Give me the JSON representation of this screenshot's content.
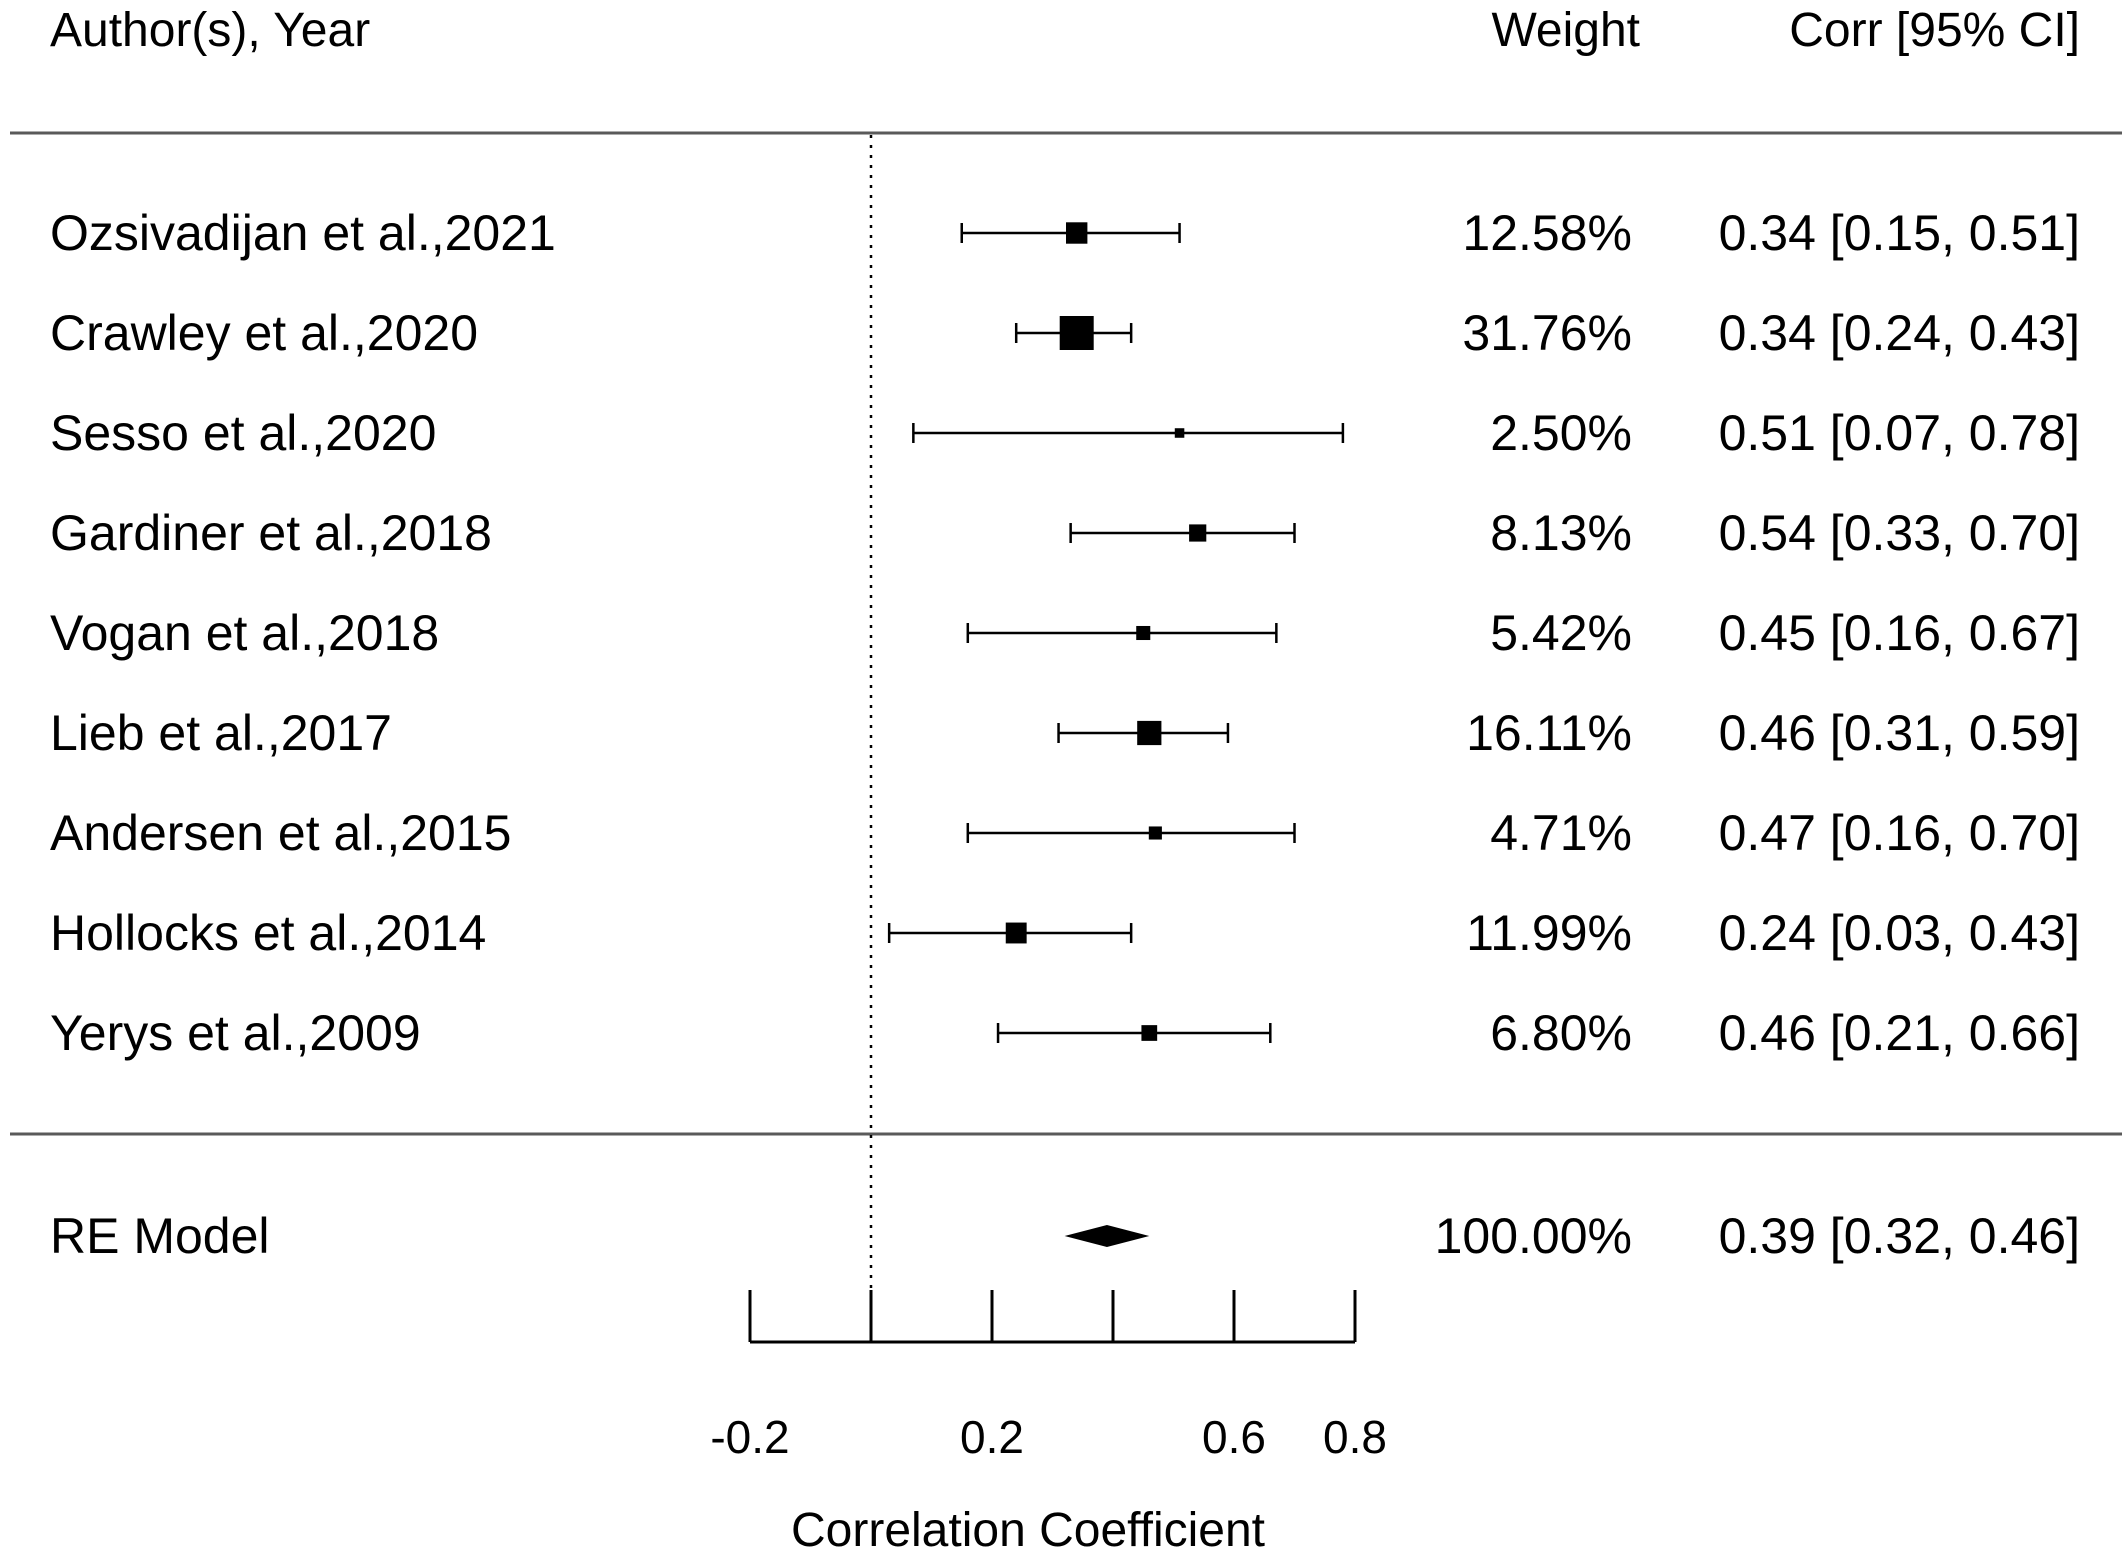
{
  "chart_data": {
    "type": "forest",
    "headers": {
      "study": "Author(s), Year",
      "weight": "Weight",
      "estimate": "Corr [95% CI]"
    },
    "xlabel": "Correlation Coefficient",
    "xlim": [
      -0.2,
      0.8
    ],
    "ticks": [
      -0.2,
      0,
      0.2,
      0.4,
      0.6,
      0.8
    ],
    "tick_labels": [
      "-0.2",
      "",
      "0.2",
      "",
      "0.6",
      "0.8"
    ],
    "reference_line": 0,
    "studies": [
      {
        "label": "Ozsivadijan et al.,2021",
        "est": 0.34,
        "lo": 0.15,
        "hi": 0.51,
        "weight": 12.58,
        "weight_text": "12.58%",
        "ci_text": "0.34 [0.15, 0.51]"
      },
      {
        "label": "Crawley et al.,2020",
        "est": 0.34,
        "lo": 0.24,
        "hi": 0.43,
        "weight": 31.76,
        "weight_text": "31.76%",
        "ci_text": "0.34 [0.24, 0.43]"
      },
      {
        "label": "Sesso et al.,2020",
        "est": 0.51,
        "lo": 0.07,
        "hi": 0.78,
        "weight": 2.5,
        "weight_text": "2.50%",
        "ci_text": "0.51 [0.07, 0.78]"
      },
      {
        "label": "Gardiner et al.,2018",
        "est": 0.54,
        "lo": 0.33,
        "hi": 0.7,
        "weight": 8.13,
        "weight_text": "8.13%",
        "ci_text": "0.54 [0.33, 0.70]"
      },
      {
        "label": "Vogan et al.,2018",
        "est": 0.45,
        "lo": 0.16,
        "hi": 0.67,
        "weight": 5.42,
        "weight_text": "5.42%",
        "ci_text": "0.45 [0.16, 0.67]"
      },
      {
        "label": "Lieb et al.,2017",
        "est": 0.46,
        "lo": 0.31,
        "hi": 0.59,
        "weight": 16.11,
        "weight_text": "16.11%",
        "ci_text": "0.46 [0.31, 0.59]"
      },
      {
        "label": "Andersen et al.,2015",
        "est": 0.47,
        "lo": 0.16,
        "hi": 0.7,
        "weight": 4.71,
        "weight_text": "4.71%",
        "ci_text": "0.47 [0.16, 0.70]"
      },
      {
        "label": "Hollocks et al.,2014",
        "est": 0.24,
        "lo": 0.03,
        "hi": 0.43,
        "weight": 11.99,
        "weight_text": "11.99%",
        "ci_text": "0.24 [0.03, 0.43]"
      },
      {
        "label": "Yerys et al.,2009",
        "est": 0.46,
        "lo": 0.21,
        "hi": 0.66,
        "weight": 6.8,
        "weight_text": "6.80%",
        "ci_text": "0.46 [0.21, 0.66]"
      }
    ],
    "summary": {
      "label": "RE Model",
      "est": 0.39,
      "lo": 0.32,
      "hi": 0.46,
      "weight": 100.0,
      "weight_text": "100.00%",
      "ci_text": "0.39 [0.32, 0.46]"
    }
  }
}
